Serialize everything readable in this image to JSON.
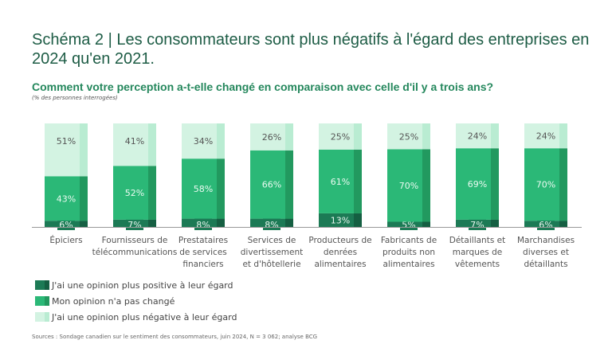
{
  "title": "Schéma 2 | Les consommateurs sont plus négatifs à l'égard des entreprises en 2024 qu'en 2021.",
  "source": "Sources : Sondage canadien sur le sentiment des consommateurs, juin 2024, N = 3 062; analyse BCG",
  "chart_data": {
    "type": "bar",
    "stacked": true,
    "title": "Comment votre perception a-t-elle changé en comparaison avec celle d'il y a trois ans?",
    "subtitle": "(% des personnes interrogées)",
    "categories": [
      [
        "Épiciers"
      ],
      [
        "Fournisseurs de",
        "télécommunications"
      ],
      [
        "Prestataires",
        "de services",
        "financiers"
      ],
      [
        "Services de",
        "divertissement",
        "et d'hôtellerie"
      ],
      [
        "Producteurs de",
        "denrées",
        "alimentaires"
      ],
      [
        "Fabricants de",
        "produits non",
        "alimentaires"
      ],
      [
        "Détaillants et",
        "marques de",
        "vêtements"
      ],
      [
        "Marchandises",
        "diverses et",
        "détaillants"
      ]
    ],
    "series": [
      {
        "name": "J'ai une opinion plus positive à leur égard",
        "color": "#1c7a55",
        "side": "#155f42",
        "values": [
          6,
          7,
          8,
          8,
          13,
          5,
          7,
          6
        ]
      },
      {
        "name": "Mon opinion n'a pas changé",
        "color": "#2bb877",
        "side": "#22995f",
        "values": [
          43,
          52,
          58,
          66,
          61,
          70,
          69,
          70
        ]
      },
      {
        "name": "J'ai une opinion plus négative à leur égard",
        "color": "#d3f3e2",
        "side": "#b9ecd2",
        "values": [
          51,
          41,
          34,
          26,
          25,
          25,
          24,
          24
        ]
      }
    ],
    "unit": "%",
    "legend": "bottom-left",
    "grid": false
  }
}
